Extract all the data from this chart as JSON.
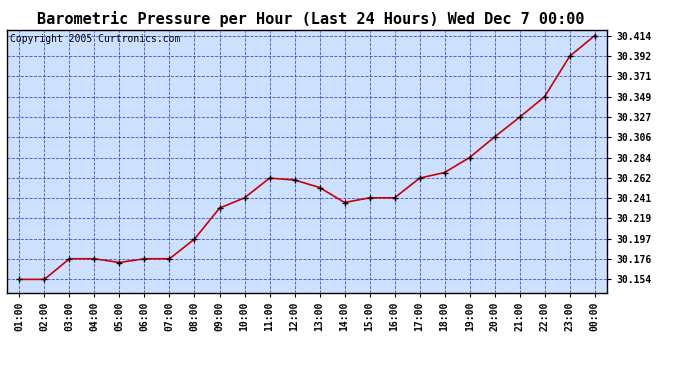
{
  "title": "Barometric Pressure per Hour (Last 24 Hours) Wed Dec 7 00:00",
  "copyright": "Copyright 2005 Curtronics.com",
  "hours": [
    "01:00",
    "02:00",
    "03:00",
    "04:00",
    "05:00",
    "06:00",
    "07:00",
    "08:00",
    "09:00",
    "10:00",
    "11:00",
    "12:00",
    "13:00",
    "14:00",
    "15:00",
    "16:00",
    "17:00",
    "18:00",
    "19:00",
    "20:00",
    "21:00",
    "22:00",
    "23:00",
    "00:00"
  ],
  "values": [
    30.154,
    30.154,
    30.176,
    30.176,
    30.172,
    30.176,
    30.176,
    30.197,
    30.23,
    30.241,
    30.262,
    30.26,
    30.252,
    30.236,
    30.241,
    30.241,
    30.262,
    30.268,
    30.284,
    30.306,
    30.327,
    30.349,
    30.392,
    30.414
  ],
  "ylim_min": 30.14,
  "ylim_max": 30.42,
  "yticks": [
    30.154,
    30.176,
    30.197,
    30.219,
    30.241,
    30.262,
    30.284,
    30.306,
    30.327,
    30.349,
    30.371,
    30.392,
    30.414
  ],
  "line_color": "#cc0000",
  "marker_color": "#000000",
  "grid_color": "#3333cc",
  "background_color": "#cce0ff",
  "plot_border_color": "#000000",
  "title_fontsize": 11,
  "tick_fontsize": 7,
  "copyright_fontsize": 7
}
